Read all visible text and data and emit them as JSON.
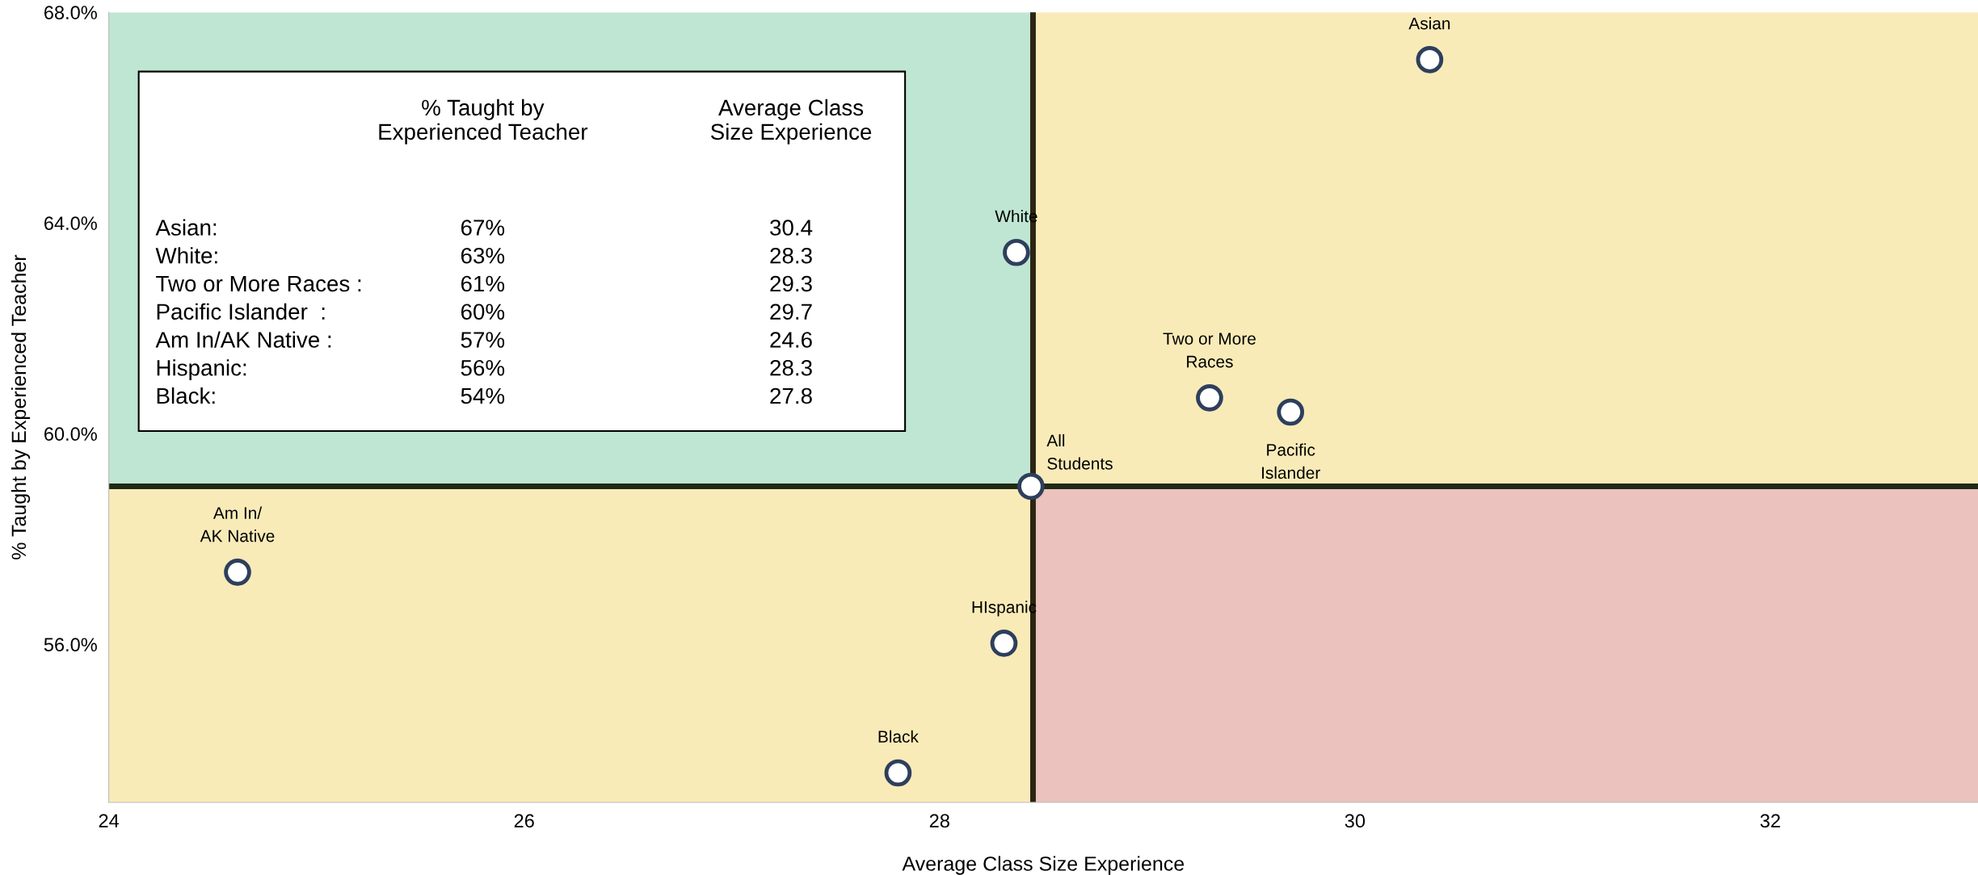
{
  "chart_data": {
    "type": "scatter",
    "xlabel": "Average Class Size Experience",
    "ylabel": "% Taught by Experienced Teacher",
    "x": [
      30.36,
      28.37,
      29.3,
      29.69,
      28.44,
      24.62,
      28.31,
      27.8
    ],
    "values": [
      67.1,
      63.44,
      60.68,
      60.41,
      59.0,
      57.37,
      56.02,
      53.56
    ],
    "color": "#2e3f5c",
    "marker": "circle",
    "xlim": [
      24,
      33
    ],
    "ylim": [
      53,
      68
    ],
    "xticks": [
      24,
      26,
      28,
      30,
      32
    ],
    "yticks": [
      {
        "value": 56,
        "label": "56.0%"
      },
      {
        "value": 60,
        "label": "60.0%"
      },
      {
        "value": 64,
        "label": "64.0%"
      },
      {
        "value": 68,
        "label": "68.0%"
      }
    ],
    "grid": false,
    "ref_lines": [
      {
        "axis": "x",
        "value": 28.45,
        "color": "#2b2412"
      },
      {
        "axis": "y",
        "value": 59.0,
        "color": "#1f2a14"
      }
    ],
    "annotations": [
      {
        "text": "Asian",
        "x": 30.36,
        "y": 67.1
      },
      {
        "text": "White",
        "x": 28.37,
        "y": 63.44
      },
      {
        "text": "Two or More\nRaces",
        "x": 29.3,
        "y": 60.68
      },
      {
        "text": "Pacific\nIslander",
        "x": 29.69,
        "y": 60.41
      },
      {
        "text": "All\nStudents",
        "x": 28.44,
        "y": 59.0
      },
      {
        "text": "Am In/\nAK Native",
        "x": 24.62,
        "y": 57.37
      },
      {
        "text": "HIspanic",
        "x": 28.31,
        "y": 56.02
      },
      {
        "text": "Black",
        "x": 27.8,
        "y": 53.56
      },
      "% Taught by\nExperienced Teacher",
      "Average Class\nSize Experience",
      "Asian:",
      "67%",
      "30.4",
      "White:",
      "63%",
      "28.3",
      "Two or More Races :",
      "61%",
      "29.3",
      "Pacific Islander  :",
      "60%",
      "29.7",
      "Am In/AK Native :",
      "57%",
      "24.6",
      "Hispanic:",
      "56%",
      "28.3",
      "Black:",
      "54%",
      "27.8"
    ]
  }
}
